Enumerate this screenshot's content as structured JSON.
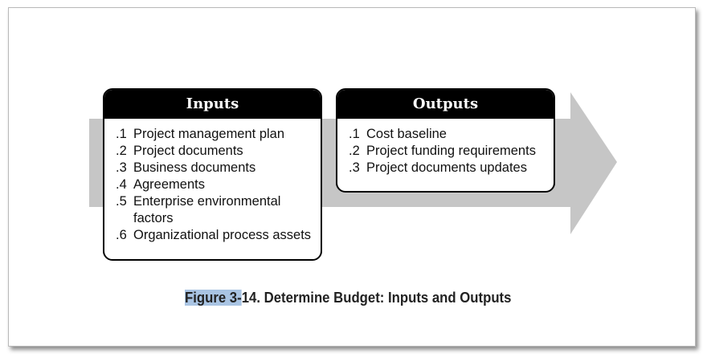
{
  "colors": {
    "arrow": "#c6c6c6",
    "box_header": "#000000",
    "highlight": "#a9c4e3"
  },
  "inputs": {
    "title": "Inputs",
    "items": [
      {
        "num": ".1",
        "text": "Project management plan"
      },
      {
        "num": ".2",
        "text": "Project documents"
      },
      {
        "num": ".3",
        "text": "Business documents"
      },
      {
        "num": ".4",
        "text": "Agreements"
      },
      {
        "num": ".5",
        "text": "Enterprise environmental factors"
      },
      {
        "num": ".6",
        "text": "Organizational process assets"
      }
    ]
  },
  "outputs": {
    "title": "Outputs",
    "items": [
      {
        "num": ".1",
        "text": "Cost baseline"
      },
      {
        "num": ".2",
        "text": "Project funding requirements"
      },
      {
        "num": ".3",
        "text": "Project documents updates"
      }
    ]
  },
  "caption": {
    "highlighted": "Figure 3-",
    "rest": "14. Determine Budget: Inputs and Outputs"
  }
}
